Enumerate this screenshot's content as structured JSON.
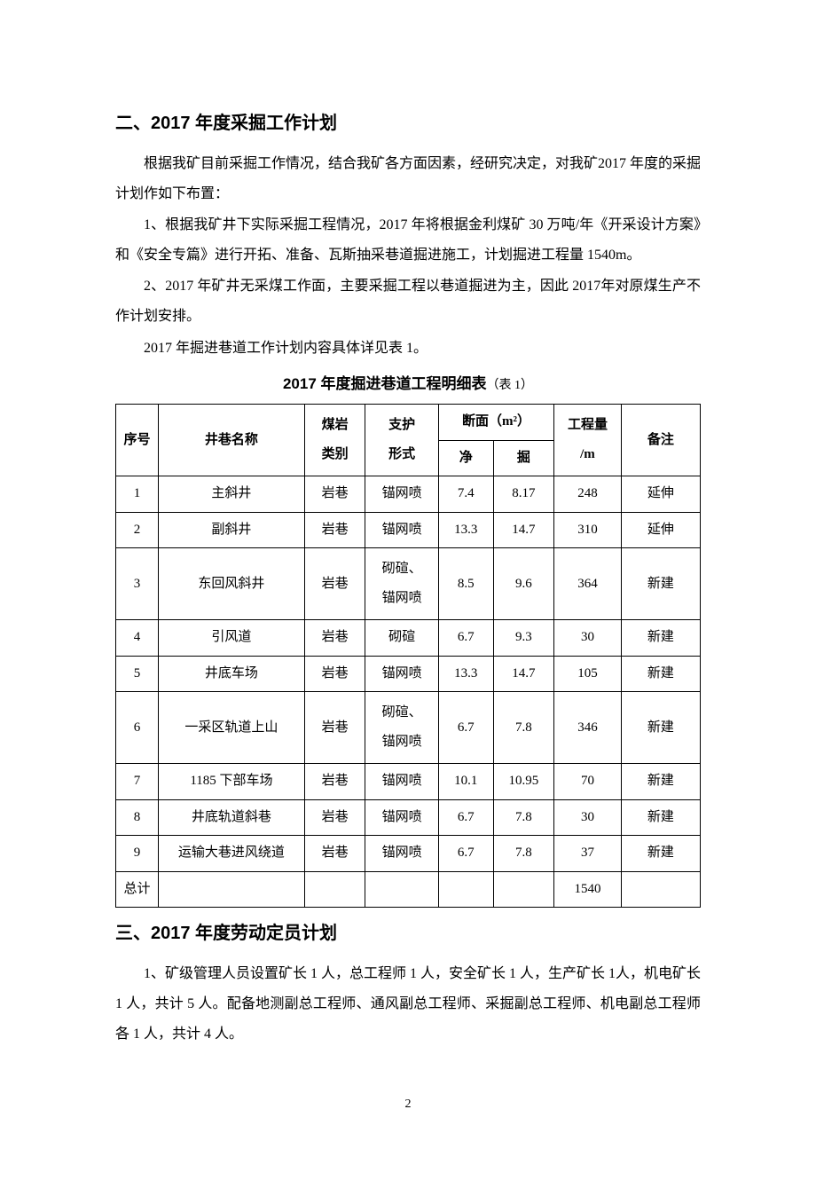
{
  "heading_2": "二、2017 年度采掘工作计划",
  "para_1": "根据我矿目前采掘工作情况，结合我矿各方面因素，经研究决定，对我矿2017 年度的采掘计划作如下布置：",
  "para_2": "1、根据我矿井下实际采掘工程情况，2017 年将根据金利煤矿 30 万吨/年《开采设计方案》和《安全专篇》进行开拓、准备、瓦斯抽采巷道掘进施工，计划掘进工程量 1540m。",
  "para_3": "2、2017 年矿井无采煤工作面，主要采掘工程以巷道掘进为主，因此 2017年对原煤生产不作计划安排。",
  "para_4": "2017 年掘进巷道工作计划内容具体详见表 1。",
  "table_title_bold": "2017 年度掘进巷道工程明细表",
  "table_title_note": "（表 1）",
  "headers": {
    "seq": "序号",
    "name": "井巷名称",
    "type": "煤岩\n类别",
    "support": "支护\n形式",
    "section": "断面（m²）",
    "jing": "净",
    "jue": "掘",
    "amount": "工程量\n/m",
    "remark": "备注"
  },
  "rows": [
    {
      "seq": "1",
      "name": "主斜井",
      "type": "岩巷",
      "support": "锚网喷",
      "jing": "7.4",
      "jue": "8.17",
      "amount": "248",
      "remark": "延伸"
    },
    {
      "seq": "2",
      "name": "副斜井",
      "type": "岩巷",
      "support": "锚网喷",
      "jing": "13.3",
      "jue": "14.7",
      "amount": "310",
      "remark": "延伸"
    },
    {
      "seq": "3",
      "name": "东回风斜井",
      "type": "岩巷",
      "support": "砌碹、\n锚网喷",
      "jing": "8.5",
      "jue": "9.6",
      "amount": "364",
      "remark": "新建"
    },
    {
      "seq": "4",
      "name": "引风道",
      "type": "岩巷",
      "support": "砌碹",
      "jing": "6.7",
      "jue": "9.3",
      "amount": "30",
      "remark": "新建"
    },
    {
      "seq": "5",
      "name": "井底车场",
      "type": "岩巷",
      "support": "锚网喷",
      "jing": "13.3",
      "jue": "14.7",
      "amount": "105",
      "remark": "新建"
    },
    {
      "seq": "6",
      "name": "一采区轨道上山",
      "type": "岩巷",
      "support": "砌碹、\n锚网喷",
      "jing": "6.7",
      "jue": "7.8",
      "amount": "346",
      "remark": "新建"
    },
    {
      "seq": "7",
      "name": "1185 下部车场",
      "type": "岩巷",
      "support": "锚网喷",
      "jing": "10.1",
      "jue": "10.95",
      "amount": "70",
      "remark": "新建"
    },
    {
      "seq": "8",
      "name": "井底轨道斜巷",
      "type": "岩巷",
      "support": "锚网喷",
      "jing": "6.7",
      "jue": "7.8",
      "amount": "30",
      "remark": "新建"
    },
    {
      "seq": "9",
      "name": "运输大巷进风绕道",
      "type": "岩巷",
      "support": "锚网喷",
      "jing": "6.7",
      "jue": "7.8",
      "amount": "37",
      "remark": "新建"
    }
  ],
  "total_row": {
    "seq": "总计",
    "name": "",
    "type": "",
    "support": "",
    "jing": "",
    "jue": "",
    "amount": "1540",
    "remark": ""
  },
  "heading_3": "三、2017 年度劳动定员计划",
  "para_5": "1、矿级管理人员设置矿长 1 人，总工程师 1 人，安全矿长 1 人，生产矿长 1人，机电矿长 1 人，共计 5 人。配备地测副总工程师、通风副总工程师、采掘副总工程师、机电副总工程师各 1 人，共计 4 人。",
  "page_number": "2"
}
